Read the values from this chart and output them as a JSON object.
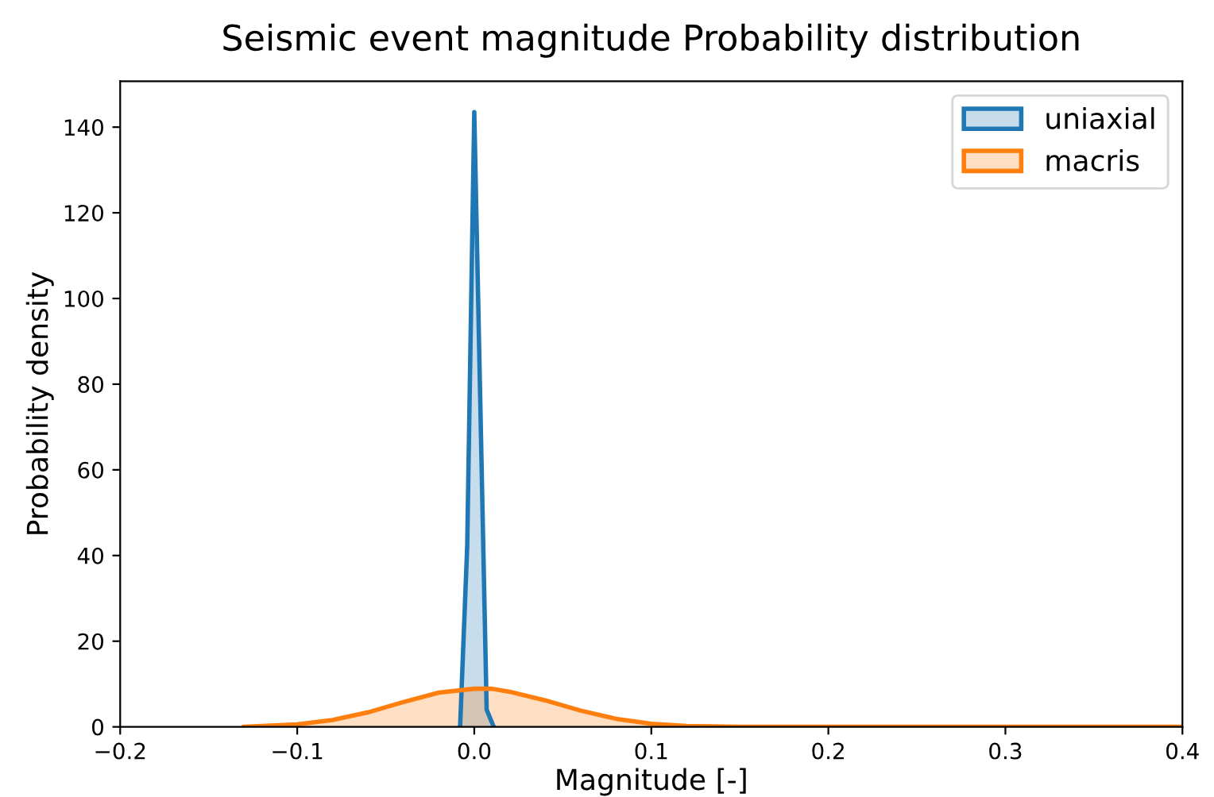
{
  "chart_data": {
    "type": "area",
    "title": "Seismic event magnitude Probability distribution",
    "xlabel": "Magnitude [-]",
    "ylabel": "Probability density",
    "series": [
      {
        "name": "uniaxial",
        "color": "#1f77b4",
        "x": [
          -0.008,
          -0.004,
          0.0,
          0.007,
          0.011
        ],
        "values": [
          0,
          42,
          143.5,
          4,
          0
        ]
      },
      {
        "name": "macris",
        "color": "#ff7f0e",
        "x": [
          -0.13,
          -0.1,
          -0.08,
          -0.06,
          -0.04,
          -0.02,
          0.0,
          0.01,
          0.02,
          0.04,
          0.06,
          0.08,
          0.1,
          0.12,
          0.15,
          0.2,
          0.3,
          0.4
        ],
        "values": [
          0,
          0.6,
          1.6,
          3.4,
          5.8,
          8.0,
          8.9,
          8.9,
          8.2,
          6.2,
          3.8,
          1.9,
          0.7,
          0.2,
          0,
          0,
          0,
          0
        ]
      }
    ],
    "xlim": [
      -0.2,
      0.4
    ],
    "xticks": [
      {
        "value": -0.2,
        "label": "−0.2"
      },
      {
        "value": -0.1,
        "label": "−0.1"
      },
      {
        "value": 0.0,
        "label": "0.0"
      },
      0.1,
      0.2,
      0.3,
      0.4
    ],
    "ylim": [
      0,
      150.7
    ],
    "yticks": [
      0,
      20,
      40,
      60,
      80,
      100,
      120,
      140
    ],
    "legend": "top right",
    "grid": false
  }
}
